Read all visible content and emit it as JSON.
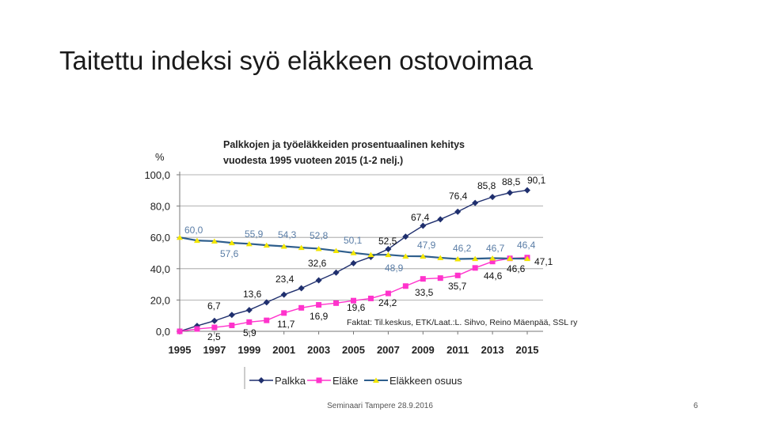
{
  "slide": {
    "title": "Taitettu indeksi syö eläkkeen ostovoimaa",
    "footer": "Seminaari Tampere 28.9.2016",
    "page_number": "6"
  },
  "chart_data": {
    "type": "line",
    "title_line1": "Palkkojen ja työeläkkeiden prosentuaalinen kehitys",
    "title_line2": "vuodesta 1995 vuoteen 2015 (1-2 nelj.)",
    "ylabel": "%",
    "ylim": [
      0,
      100
    ],
    "yticks": [
      "0,0",
      "20,0",
      "40,0",
      "60,0",
      "80,0",
      "100,0"
    ],
    "xlim": [
      1995,
      2015
    ],
    "xticks": [
      "1995",
      "1997",
      "1999",
      "2001",
      "2003",
      "2005",
      "2007",
      "2009",
      "2011",
      "2013",
      "2015"
    ],
    "grid": "horizontal",
    "legend_position": "bottom",
    "source_note": "Faktat: Til.keskus, ETK/Laat.:L. Sihvo, Reino Mäenpää, SSL ry",
    "colors": {
      "palkka": "#1f2f6e",
      "elake": "#ff33cc",
      "osuus": "#2e5e8c",
      "osuus_marker": "#f2e600"
    },
    "x": [
      1995,
      1996,
      1997,
      1998,
      1999,
      2000,
      2001,
      2002,
      2003,
      2004,
      2005,
      2006,
      2007,
      2008,
      2009,
      2010,
      2011,
      2012,
      2013,
      2014,
      2015
    ],
    "series": [
      {
        "name": "Palkka",
        "values": [
          0,
          3.5,
          6.7,
          10.5,
          13.6,
          18.5,
          23.4,
          27.5,
          32.6,
          37.5,
          43.5,
          47.5,
          52.5,
          60.5,
          67.4,
          71.5,
          76.4,
          82,
          85.8,
          88.5,
          90.1
        ]
      },
      {
        "name": "Eläke",
        "values": [
          0,
          1.5,
          2.5,
          3.8,
          5.9,
          7,
          11.7,
          15,
          16.9,
          18,
          19.6,
          21,
          24.2,
          28.9,
          33.5,
          34,
          35.7,
          40.5,
          44.6,
          46.6,
          47.1
        ]
      },
      {
        "name": "Eläkkeen osuus",
        "values": [
          60,
          58,
          57.6,
          56.5,
          55.9,
          55,
          54.3,
          53.5,
          52.8,
          51.5,
          50.1,
          48.9,
          48.9,
          48,
          47.9,
          47,
          46.2,
          46.4,
          46.7,
          46.5,
          46.4
        ]
      }
    ],
    "data_labels": [
      {
        "series": 0,
        "text": "6,7"
      },
      {
        "series": 0,
        "text": "13,6"
      },
      {
        "series": 0,
        "text": "23,4"
      },
      {
        "series": 0,
        "text": "32,6"
      },
      {
        "series": 0,
        "text": "52,5"
      },
      {
        "series": 0,
        "text": "67,4"
      },
      {
        "series": 0,
        "text": "76,4"
      },
      {
        "series": 0,
        "text": "85,8"
      },
      {
        "series": 0,
        "text": "88,5"
      },
      {
        "series": 0,
        "text": "90,1"
      },
      {
        "series": 1,
        "text": "2,5"
      },
      {
        "series": 1,
        "text": "5,9"
      },
      {
        "series": 1,
        "text": "11,7"
      },
      {
        "series": 1,
        "text": "16,9"
      },
      {
        "series": 1,
        "text": "19,6"
      },
      {
        "series": 1,
        "text": "24,2"
      },
      {
        "series": 1,
        "text": "33,5"
      },
      {
        "series": 1,
        "text": "35,7"
      },
      {
        "series": 1,
        "text": "44,6"
      },
      {
        "series": 1,
        "text": "46,6"
      },
      {
        "series": 1,
        "text": "47,1"
      },
      {
        "series": 2,
        "text": "60,0"
      },
      {
        "series": 2,
        "text": "57,6"
      },
      {
        "series": 2,
        "text": "55,9"
      },
      {
        "series": 2,
        "text": "54,3"
      },
      {
        "series": 2,
        "text": "52,8"
      },
      {
        "series": 2,
        "text": "50,1"
      },
      {
        "series": 2,
        "text": "48,9"
      },
      {
        "series": 2,
        "text": "47,9"
      },
      {
        "series": 2,
        "text": "46,2"
      },
      {
        "series": 2,
        "text": "46,7"
      },
      {
        "series": 2,
        "text": "46,4"
      }
    ]
  }
}
